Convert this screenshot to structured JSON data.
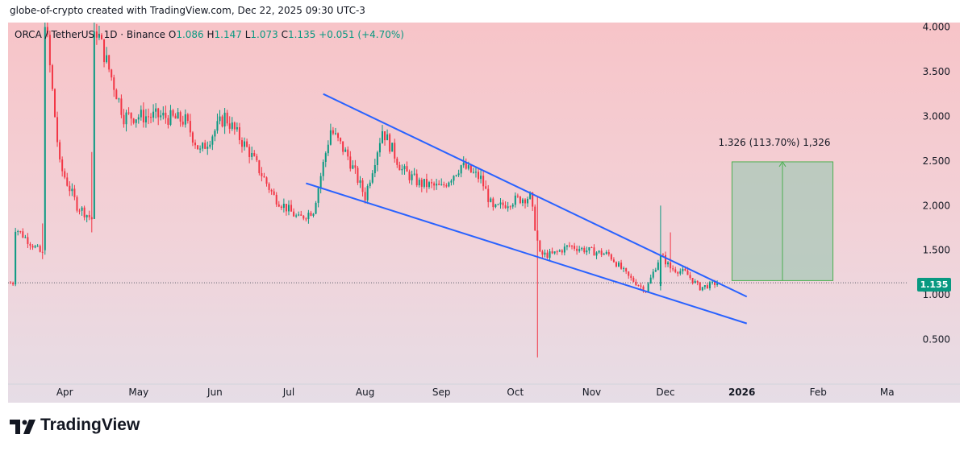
{
  "caption": "globe-of-crypto created with TradingView.com, Dec 22, 2025 09:30 UTC-3",
  "brand": {
    "name": "TradingView"
  },
  "legend": {
    "symbol": "ORCA / TetherUS · 1D · Binance",
    "o_label": "O",
    "o_value": "1.086",
    "h_label": "H",
    "h_value": "1.147",
    "l_label": "L",
    "l_value": "1.073",
    "c_label": "C",
    "c_value": "1.135",
    "change": "+0.051 (+4.70%)"
  },
  "current_price": "1.135",
  "colors": {
    "up": "#089981",
    "down": "#f23645",
    "trendline": "#2962ff",
    "measure_fill": "#a9c8b8",
    "measure_stroke": "#4caf50"
  },
  "chart_data": {
    "type": "candlestick",
    "title": "ORCA / TetherUS · 1D · Binance",
    "x_tick_labels": [
      "Apr",
      "May",
      "Jun",
      "Jul",
      "Aug",
      "Sep",
      "Oct",
      "Nov",
      "Dec",
      "2026",
      "Feb",
      "Ma"
    ],
    "y_ticks": [
      0.5,
      1.0,
      1.5,
      2.0,
      2.5,
      3.0,
      3.5,
      4.0
    ],
    "y_tick_labels": [
      "0.500",
      "1.000",
      "1.500",
      "2.000",
      "2.500",
      "3.000",
      "3.500",
      "4.000"
    ],
    "ylim": [
      0.0,
      4.05
    ],
    "xlim": [
      "2025-03-09",
      "2026-03-06"
    ],
    "price_line": 1.135,
    "series": [
      {
        "x": [
          "2025-03-12",
          "2025-03-23",
          "2025-03-24",
          "2025-03-30",
          "2025-04-06",
          "2025-04-12",
          "2025-04-13",
          "2025-04-25",
          "2025-05-10",
          "2025-05-20",
          "2025-05-26",
          "2025-06-05",
          "2025-06-15",
          "2025-06-25",
          "2025-07-05",
          "2025-07-11",
          "2025-07-18",
          "2025-07-25",
          "2025-08-01",
          "2025-08-08",
          "2025-08-16",
          "2025-08-23",
          "2025-09-01",
          "2025-09-09",
          "2025-09-17",
          "2025-09-22",
          "2025-09-29",
          "2025-10-07",
          "2025-10-10",
          "2025-10-11",
          "2025-10-16",
          "2025-10-23",
          "2025-10-30",
          "2025-11-08",
          "2025-11-16",
          "2025-11-23",
          "2025-11-29",
          "2025-12-03",
          "2025-12-09",
          "2025-12-15",
          "2025-12-22"
        ],
        "values": [
          1.75,
          1.45,
          4.1,
          2.45,
          2.0,
          1.85,
          4.05,
          3.0,
          3.0,
          2.95,
          2.6,
          3.0,
          2.6,
          2.1,
          1.85,
          1.95,
          2.85,
          2.55,
          2.1,
          2.85,
          2.4,
          2.25,
          2.2,
          2.45,
          2.3,
          1.95,
          2.05,
          2.1,
          1.6,
          1.45,
          1.45,
          1.55,
          1.5,
          1.45,
          1.2,
          1.05,
          1.45,
          1.3,
          1.25,
          1.08,
          1.135
        ]
      }
    ],
    "annotations": {
      "falling_wedge_upper": {
        "start": [
          "2025-07-15",
          3.25
        ],
        "end": [
          "2026-01-03",
          0.98
        ]
      },
      "falling_wedge_lower": {
        "start": [
          "2025-07-08",
          2.25
        ],
        "end": [
          "2026-01-03",
          0.68
        ]
      },
      "measured_move": {
        "label": "1.326 (113.70%) 1,326",
        "x_start": "2025-12-28",
        "x_end": "2026-02-07",
        "y_start": 1.16,
        "y_end": 2.49
      }
    }
  }
}
